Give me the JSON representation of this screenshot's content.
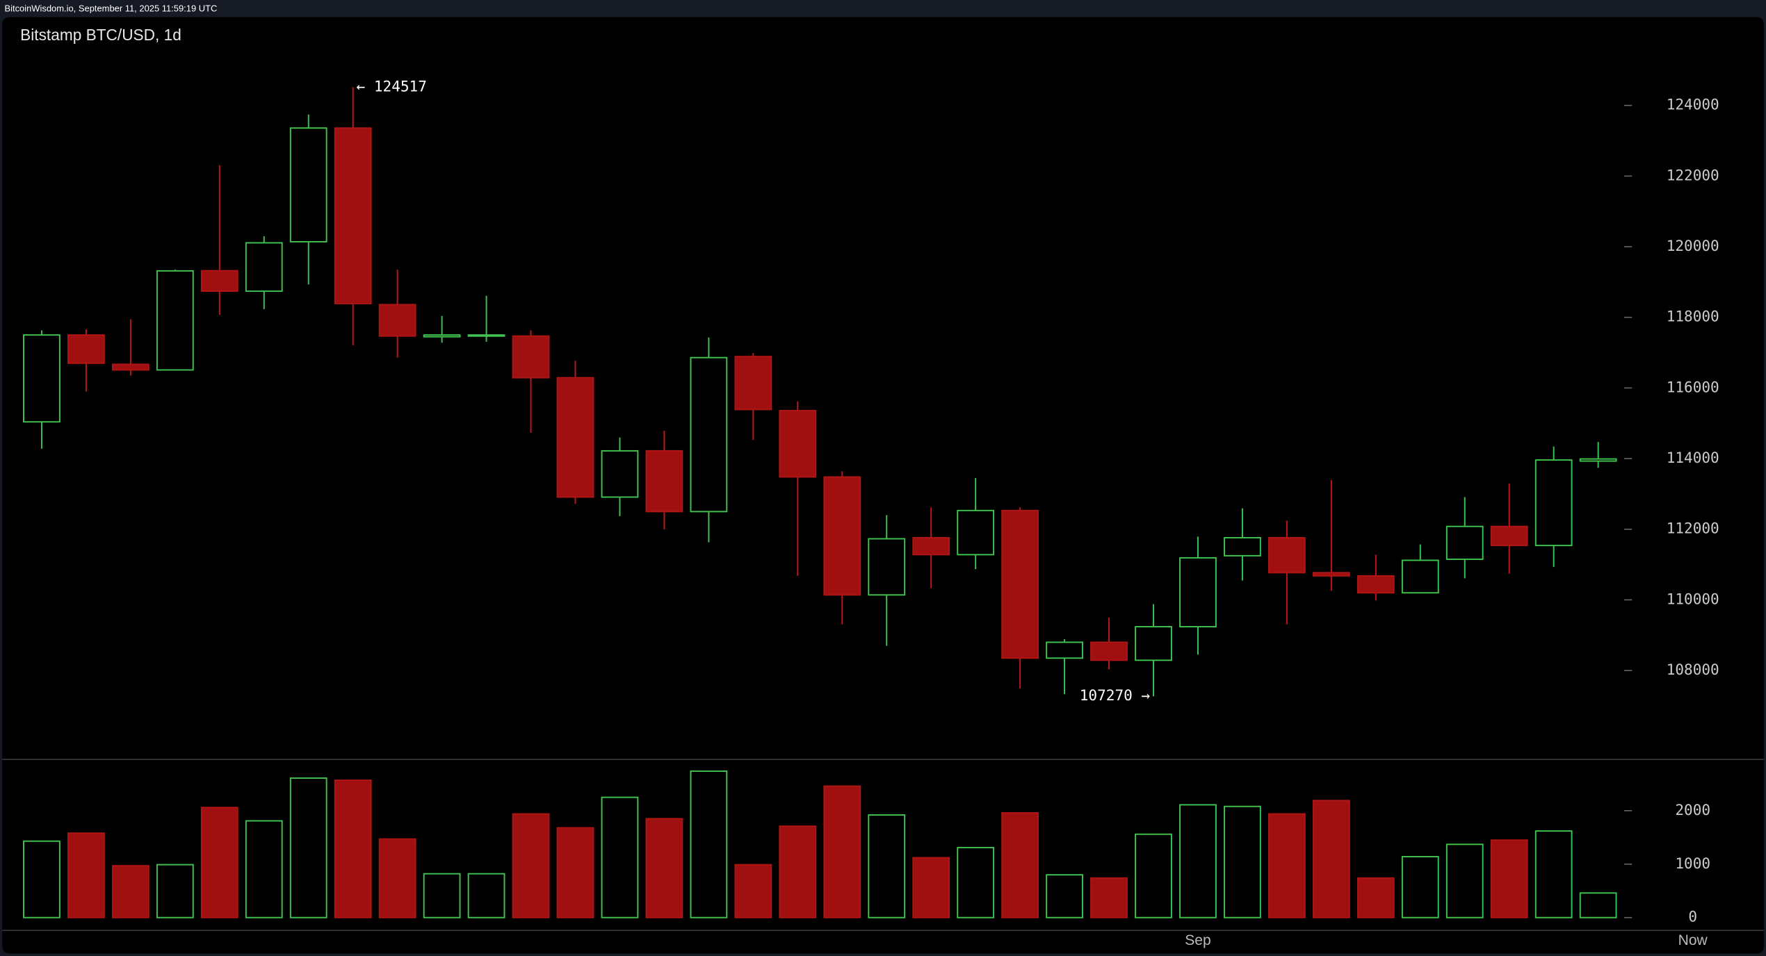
{
  "header": "BitcoinWisdom.io, September 11, 2025 11:59:19 UTC",
  "chart_data": {
    "type": "candlestick",
    "title": "Bitstamp BTC/USD, 1d",
    "annotations": [
      "← 124517",
      "107270 →"
    ],
    "categories": [
      null,
      null,
      null,
      null,
      null,
      null,
      null,
      null,
      null,
      null,
      null,
      null,
      null,
      null,
      null,
      null,
      null,
      null,
      null,
      null,
      null,
      null,
      null,
      null,
      null,
      null,
      "Sep",
      null,
      null,
      null,
      null,
      null,
      null,
      null,
      null,
      null
    ],
    "now_label": "Now",
    "open": [
      115040,
      117500,
      116670,
      116510,
      119320,
      118740,
      120140,
      123360,
      118360,
      117450,
      117470,
      117470,
      116290,
      112910,
      114220,
      112500,
      116890,
      115360,
      113480,
      110140,
      111760,
      111280,
      112530,
      108350,
      108800,
      108290,
      109240,
      111250,
      111760,
      110770,
      110680,
      110200,
      111150,
      112080,
      111540,
      113930
    ],
    "high": [
      117630,
      117660,
      117945,
      119350,
      122310,
      120300,
      123745,
      124517,
      119350,
      118040,
      118610,
      117630,
      116770,
      114600,
      114790,
      117430,
      116990,
      115620,
      113640,
      112400,
      112620,
      113450,
      112620,
      108890,
      109500,
      109880,
      111790,
      112590,
      112240,
      113390,
      111280,
      111570,
      112910,
      113290,
      114340,
      114470
    ],
    "low": [
      114280,
      115900,
      116350,
      116500,
      118070,
      118230,
      118930,
      117210,
      116860,
      117280,
      117310,
      114730,
      112720,
      112370,
      111990,
      111630,
      114530,
      110680,
      109310,
      108700,
      110330,
      110870,
      107490,
      107330,
      108030,
      107270,
      108450,
      110550,
      109310,
      110260,
      109980,
      110200,
      110610,
      110740,
      110930,
      113740
    ],
    "close": [
      117500,
      116700,
      116510,
      119315,
      118740,
      120110,
      123360,
      118390,
      117470,
      117500,
      117500,
      116290,
      112910,
      114220,
      112500,
      116860,
      115390,
      113480,
      110140,
      111730,
      111280,
      112530,
      108350,
      108800,
      108290,
      109240,
      111190,
      111760,
      110770,
      110680,
      110200,
      111120,
      112080,
      111540,
      113960,
      113990
    ],
    "volume": [
      1430,
      1580,
      970,
      990,
      2060,
      1810,
      2610,
      2570,
      1470,
      820,
      820,
      1940,
      1680,
      2250,
      1850,
      2740,
      990,
      1710,
      2460,
      1920,
      1120,
      1310,
      1960,
      800,
      740,
      1560,
      2110,
      2080,
      1940,
      2190,
      740,
      1140,
      1370,
      1450,
      1620,
      460
    ],
    "up_color": "#3fc34f",
    "down_color": "#a01010",
    "ylim": [
      105500,
      126500
    ],
    "yticks": [
      108000,
      110000,
      112000,
      114000,
      116000,
      118000,
      120000,
      122000,
      124000
    ],
    "volume_ylim": [
      -230,
      2950
    ],
    "volume_ticks": [
      0,
      1000,
      2000
    ]
  }
}
